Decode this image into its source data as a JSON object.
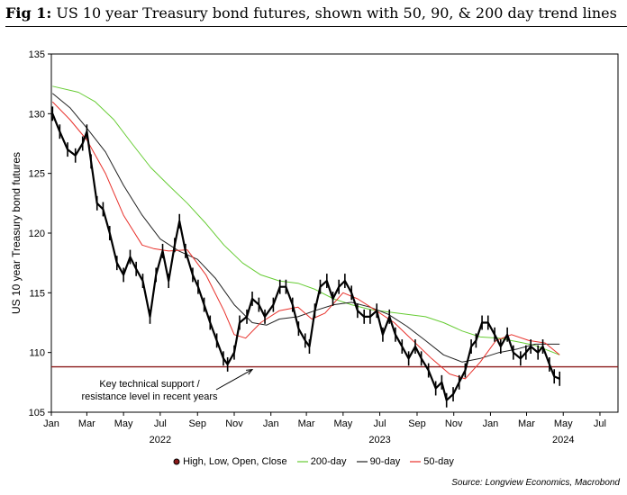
{
  "figure": {
    "label": "Fig 1:",
    "title": "US 10 year Treasury bond futures, shown with 50, 90, & 200 day trend lines",
    "source": "Source: Longview Economics, Macrobond"
  },
  "colors": {
    "price": "#000000",
    "ma200": "#66cc33",
    "ma90": "#222222",
    "ma50": "#e8302a",
    "support": "#8b1a1a"
  },
  "chart_data": {
    "type": "line",
    "ylabel": "US 10 year Treasury bond futures",
    "ylim": [
      105,
      135
    ],
    "yticks": [
      105,
      110,
      115,
      120,
      125,
      130,
      135
    ],
    "xlim": [
      "2022-01-01",
      "2024-07-31"
    ],
    "xticks": [
      {
        "date": "2022-01-01",
        "label": "Jan"
      },
      {
        "date": "2022-03-01",
        "label": "Mar"
      },
      {
        "date": "2022-05-01",
        "label": "May"
      },
      {
        "date": "2022-07-01",
        "label": "Jul"
      },
      {
        "date": "2022-09-01",
        "label": "Sep"
      },
      {
        "date": "2022-11-01",
        "label": "Nov"
      },
      {
        "date": "2023-01-01",
        "label": "Jan"
      },
      {
        "date": "2023-03-01",
        "label": "Mar"
      },
      {
        "date": "2023-05-01",
        "label": "May"
      },
      {
        "date": "2023-07-01",
        "label": "Jul"
      },
      {
        "date": "2023-09-01",
        "label": "Sep"
      },
      {
        "date": "2023-11-01",
        "label": "Nov"
      },
      {
        "date": "2024-01-01",
        "label": "Jan"
      },
      {
        "date": "2024-03-01",
        "label": "Mar"
      },
      {
        "date": "2024-05-01",
        "label": "May"
      },
      {
        "date": "2024-07-01",
        "label": "Jul"
      }
    ],
    "year_labels": [
      {
        "date": "2022-07-01",
        "label": "2022"
      },
      {
        "date": "2023-07-01",
        "label": "2023"
      },
      {
        "date": "2024-05-01",
        "label": "2024"
      }
    ],
    "support_level": 108.8,
    "annotation": {
      "lines": [
        "Key technical support /",
        "resistance level in recent years"
      ],
      "arrow_to": {
        "date": "2022-12-01",
        "value": 108.8
      }
    },
    "legend": [
      {
        "key": "price",
        "label": "High, Low, Open, Close"
      },
      {
        "key": "ma200",
        "label": "200-day"
      },
      {
        "key": "ma90",
        "label": "90-day"
      },
      {
        "key": "ma50",
        "label": "50-day"
      }
    ],
    "series": [
      {
        "name": "High, Low, Open, Close",
        "key": "price",
        "points": [
          [
            "2022-01-03",
            130.0
          ],
          [
            "2022-01-15",
            128.5
          ],
          [
            "2022-01-28",
            127.0
          ],
          [
            "2022-02-10",
            126.5
          ],
          [
            "2022-02-22",
            127.5
          ],
          [
            "2022-03-01",
            128.5
          ],
          [
            "2022-03-08",
            126.0
          ],
          [
            "2022-03-18",
            122.5
          ],
          [
            "2022-03-28",
            122.0
          ],
          [
            "2022-04-08",
            120.0
          ],
          [
            "2022-04-20",
            117.5
          ],
          [
            "2022-05-01",
            116.5
          ],
          [
            "2022-05-12",
            118.0
          ],
          [
            "2022-05-22",
            117.0
          ],
          [
            "2022-06-02",
            116.0
          ],
          [
            "2022-06-14",
            113.0
          ],
          [
            "2022-06-24",
            116.5
          ],
          [
            "2022-07-05",
            118.5
          ],
          [
            "2022-07-15",
            116.0
          ],
          [
            "2022-07-25",
            119.0
          ],
          [
            "2022-08-02",
            121.0
          ],
          [
            "2022-08-12",
            118.5
          ],
          [
            "2022-08-24",
            116.5
          ],
          [
            "2022-09-02",
            115.5
          ],
          [
            "2022-09-12",
            114.0
          ],
          [
            "2022-09-22",
            112.5
          ],
          [
            "2022-10-03",
            111.0
          ],
          [
            "2022-10-14",
            109.5
          ],
          [
            "2022-10-21",
            109.0
          ],
          [
            "2022-11-01",
            110.0
          ],
          [
            "2022-11-10",
            112.5
          ],
          [
            "2022-11-22",
            113.0
          ],
          [
            "2022-12-01",
            114.5
          ],
          [
            "2022-12-12",
            114.0
          ],
          [
            "2022-12-22",
            113.0
          ],
          [
            "2023-01-05",
            114.0
          ],
          [
            "2023-01-16",
            115.5
          ],
          [
            "2023-01-26",
            115.5
          ],
          [
            "2023-02-06",
            114.0
          ],
          [
            "2023-02-16",
            112.0
          ],
          [
            "2023-02-27",
            111.0
          ],
          [
            "2023-03-06",
            110.5
          ],
          [
            "2023-03-15",
            113.5
          ],
          [
            "2023-03-24",
            115.5
          ],
          [
            "2023-04-04",
            116.0
          ],
          [
            "2023-04-14",
            114.5
          ],
          [
            "2023-04-24",
            115.5
          ],
          [
            "2023-05-04",
            116.0
          ],
          [
            "2023-05-15",
            115.0
          ],
          [
            "2023-05-25",
            113.5
          ],
          [
            "2023-06-05",
            113.0
          ],
          [
            "2023-06-15",
            113.0
          ],
          [
            "2023-06-26",
            113.5
          ],
          [
            "2023-07-06",
            111.5
          ],
          [
            "2023-07-17",
            113.0
          ],
          [
            "2023-07-27",
            111.5
          ],
          [
            "2023-08-07",
            110.5
          ],
          [
            "2023-08-18",
            109.5
          ],
          [
            "2023-08-29",
            110.5
          ],
          [
            "2023-09-08",
            109.5
          ],
          [
            "2023-09-20",
            108.5
          ],
          [
            "2023-10-02",
            107.0
          ],
          [
            "2023-10-12",
            107.5
          ],
          [
            "2023-10-20",
            106.0
          ],
          [
            "2023-10-31",
            106.5
          ],
          [
            "2023-11-10",
            107.5
          ],
          [
            "2023-11-20",
            108.5
          ],
          [
            "2023-11-30",
            110.5
          ],
          [
            "2023-12-08",
            111.0
          ],
          [
            "2023-12-18",
            112.5
          ],
          [
            "2023-12-28",
            112.5
          ],
          [
            "2024-01-08",
            111.5
          ],
          [
            "2024-01-18",
            110.5
          ],
          [
            "2024-01-29",
            111.5
          ],
          [
            "2024-02-08",
            110.0
          ],
          [
            "2024-02-20",
            109.5
          ],
          [
            "2024-02-29",
            110.0
          ],
          [
            "2024-03-08",
            110.5
          ],
          [
            "2024-03-20",
            110.0
          ],
          [
            "2024-03-28",
            110.5
          ],
          [
            "2024-04-08",
            109.0
          ],
          [
            "2024-04-16",
            108.0
          ],
          [
            "2024-04-25",
            107.8
          ]
        ]
      },
      {
        "name": "200-day",
        "key": "ma200",
        "points": [
          [
            "2022-01-03",
            132.3
          ],
          [
            "2022-02-15",
            131.8
          ],
          [
            "2022-03-15",
            131.0
          ],
          [
            "2022-04-15",
            129.5
          ],
          [
            "2022-05-15",
            127.5
          ],
          [
            "2022-06-15",
            125.5
          ],
          [
            "2022-07-15",
            124.0
          ],
          [
            "2022-08-15",
            122.5
          ],
          [
            "2022-09-15",
            120.8
          ],
          [
            "2022-10-15",
            119.0
          ],
          [
            "2022-11-15",
            117.5
          ],
          [
            "2022-12-15",
            116.5
          ],
          [
            "2023-01-15",
            116.0
          ],
          [
            "2023-02-15",
            115.8
          ],
          [
            "2023-03-15",
            115.3
          ],
          [
            "2023-04-15",
            114.5
          ],
          [
            "2023-05-15",
            114.0
          ],
          [
            "2023-06-15",
            113.6
          ],
          [
            "2023-07-15",
            113.4
          ],
          [
            "2023-08-15",
            113.2
          ],
          [
            "2023-09-15",
            113.0
          ],
          [
            "2023-10-15",
            112.5
          ],
          [
            "2023-11-15",
            111.8
          ],
          [
            "2023-12-15",
            111.3
          ],
          [
            "2024-01-15",
            111.2
          ],
          [
            "2024-02-15",
            110.9
          ],
          [
            "2024-03-15",
            110.6
          ],
          [
            "2024-04-25",
            109.8
          ]
        ]
      },
      {
        "name": "90-day",
        "key": "ma90",
        "points": [
          [
            "2022-01-03",
            131.7
          ],
          [
            "2022-02-01",
            130.5
          ],
          [
            "2022-03-01",
            128.8
          ],
          [
            "2022-04-01",
            126.8
          ],
          [
            "2022-05-01",
            124.0
          ],
          [
            "2022-06-01",
            121.5
          ],
          [
            "2022-07-01",
            119.5
          ],
          [
            "2022-08-01",
            118.5
          ],
          [
            "2022-09-01",
            117.8
          ],
          [
            "2022-10-01",
            116.2
          ],
          [
            "2022-11-01",
            114.0
          ],
          [
            "2022-12-01",
            112.5
          ],
          [
            "2022-12-25",
            112.3
          ],
          [
            "2023-01-15",
            112.8
          ],
          [
            "2023-02-15",
            113.0
          ],
          [
            "2023-03-15",
            113.5
          ],
          [
            "2023-04-15",
            114.0
          ],
          [
            "2023-05-15",
            114.2
          ],
          [
            "2023-06-15",
            113.8
          ],
          [
            "2023-07-15",
            113.2
          ],
          [
            "2023-08-15",
            112.2
          ],
          [
            "2023-09-15",
            111.0
          ],
          [
            "2023-10-15",
            109.8
          ],
          [
            "2023-11-15",
            109.2
          ],
          [
            "2023-12-15",
            109.5
          ],
          [
            "2024-01-15",
            110.0
          ],
          [
            "2024-02-15",
            110.3
          ],
          [
            "2024-03-15",
            110.7
          ],
          [
            "2024-04-25",
            110.7
          ]
        ]
      },
      {
        "name": "50-day",
        "key": "ma50",
        "points": [
          [
            "2022-01-03",
            131.0
          ],
          [
            "2022-02-01",
            129.5
          ],
          [
            "2022-03-01",
            127.8
          ],
          [
            "2022-04-01",
            125.0
          ],
          [
            "2022-05-01",
            121.5
          ],
          [
            "2022-06-01",
            119.0
          ],
          [
            "2022-06-20",
            118.7
          ],
          [
            "2022-07-15",
            118.5
          ],
          [
            "2022-08-15",
            118.6
          ],
          [
            "2022-09-15",
            116.5
          ],
          [
            "2022-10-15",
            113.5
          ],
          [
            "2022-11-01",
            111.5
          ],
          [
            "2022-11-20",
            111.2
          ],
          [
            "2022-12-15",
            112.5
          ],
          [
            "2023-01-15",
            113.5
          ],
          [
            "2023-02-15",
            113.8
          ],
          [
            "2023-03-10",
            112.8
          ],
          [
            "2023-04-01",
            113.3
          ],
          [
            "2023-05-01",
            115.0
          ],
          [
            "2023-05-25",
            114.5
          ],
          [
            "2023-06-25",
            113.5
          ],
          [
            "2023-07-25",
            112.5
          ],
          [
            "2023-08-25",
            111.0
          ],
          [
            "2023-09-25",
            109.5
          ],
          [
            "2023-10-25",
            108.2
          ],
          [
            "2023-11-20",
            107.8
          ],
          [
            "2023-12-15",
            109.2
          ],
          [
            "2024-01-10",
            111.0
          ],
          [
            "2024-02-05",
            111.5
          ],
          [
            "2024-03-05",
            111.0
          ],
          [
            "2024-04-01",
            110.8
          ],
          [
            "2024-04-25",
            109.8
          ]
        ]
      }
    ]
  }
}
